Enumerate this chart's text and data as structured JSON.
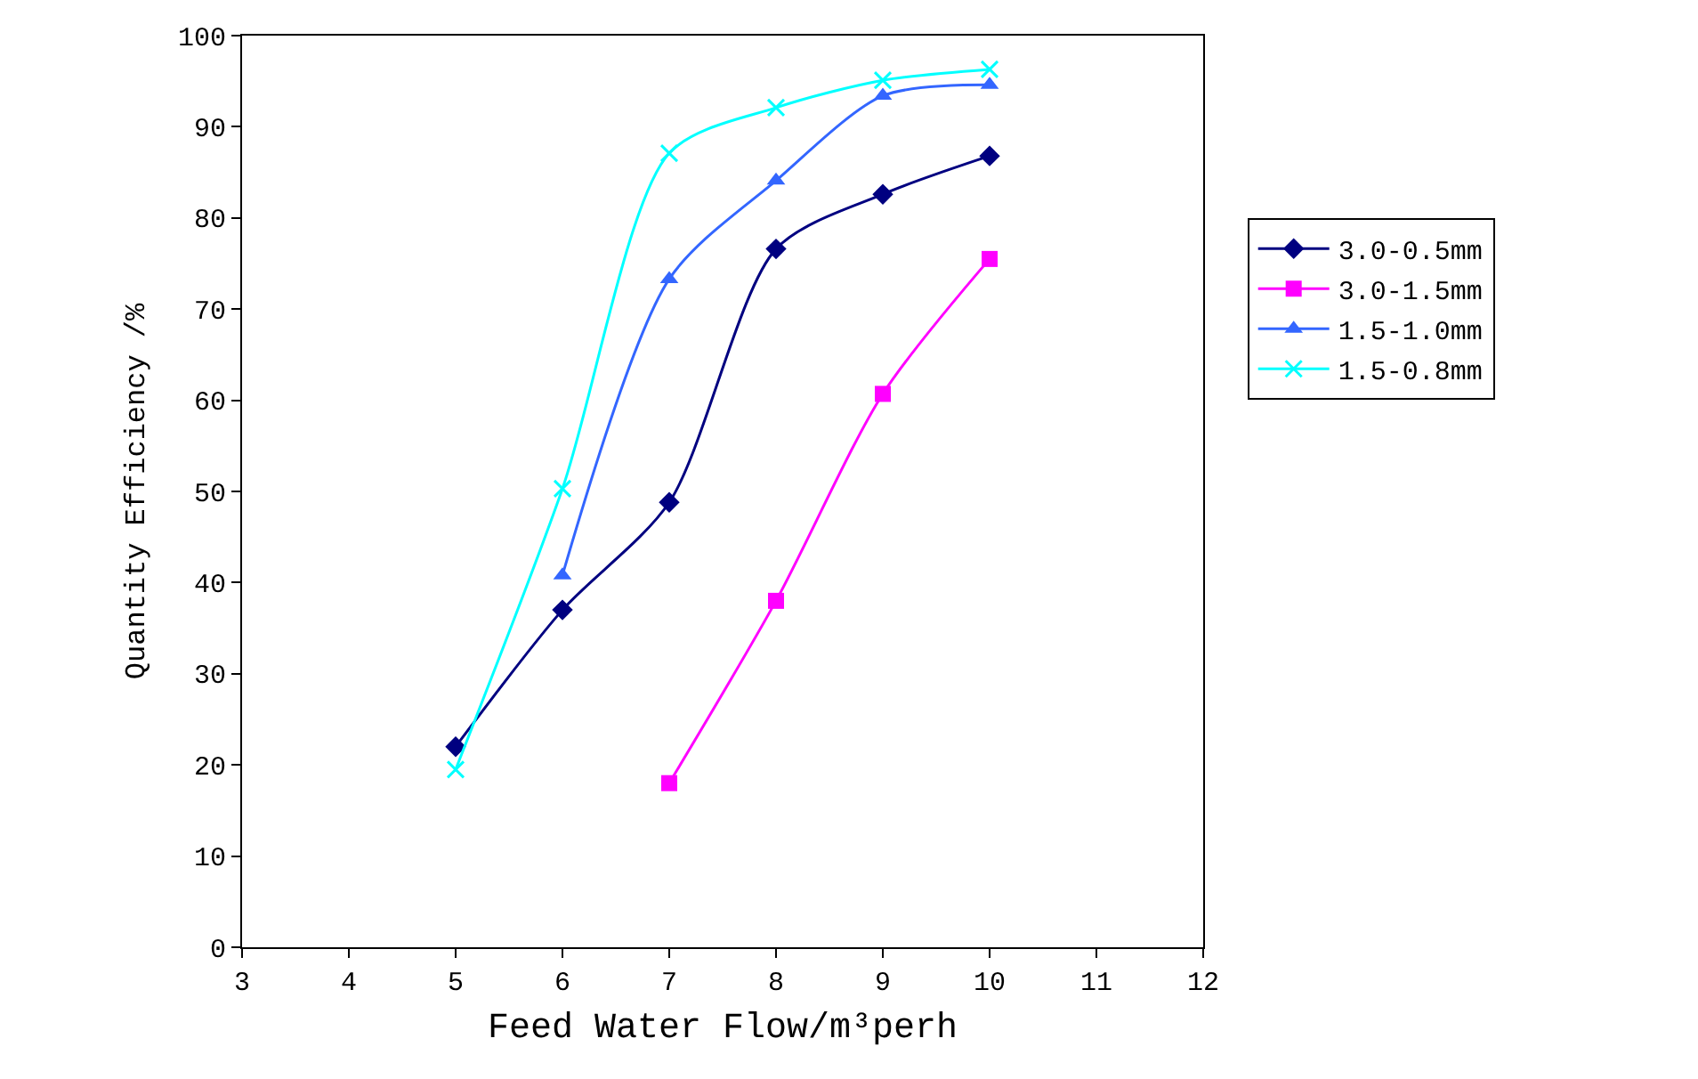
{
  "chart_data": {
    "type": "line",
    "xlabel": "Feed Water Flow/m³perh",
    "ylabel": "Quantity Efficiency /%",
    "xlim": [
      3,
      12
    ],
    "xticks": [
      3,
      4,
      5,
      6,
      7,
      8,
      9,
      10,
      11,
      12
    ],
    "ylim": [
      0,
      100
    ],
    "yticks": [
      0,
      10,
      20,
      30,
      40,
      50,
      60,
      70,
      80,
      90,
      100
    ],
    "legend": "right",
    "line_style": "solid",
    "series": [
      {
        "name": "3.0-0.5mm",
        "color": "#000080",
        "marker": "diamond",
        "x": [
          5,
          6,
          7,
          8,
          9,
          10
        ],
        "values": [
          22,
          37,
          48.8,
          76.6,
          82.6,
          86.8
        ]
      },
      {
        "name": "3.0-1.5mm",
        "color": "#ff00ff",
        "marker": "square",
        "x": [
          7,
          8,
          9,
          10
        ],
        "values": [
          18,
          38,
          60.7,
          75.5
        ]
      },
      {
        "name": "1.5-1.0mm",
        "color": "#3366ff",
        "marker": "triangle",
        "x": [
          6,
          7,
          8,
          9,
          10
        ],
        "values": [
          40.8,
          73.3,
          84.1,
          93.4,
          94.6
        ]
      },
      {
        "name": "1.5-0.8mm",
        "color": "#00ffff",
        "marker": "cross",
        "x": [
          5,
          6,
          7,
          8,
          9,
          10
        ],
        "values": [
          19.5,
          50.3,
          87.1,
          92.1,
          95.1,
          96.3
        ]
      }
    ]
  }
}
